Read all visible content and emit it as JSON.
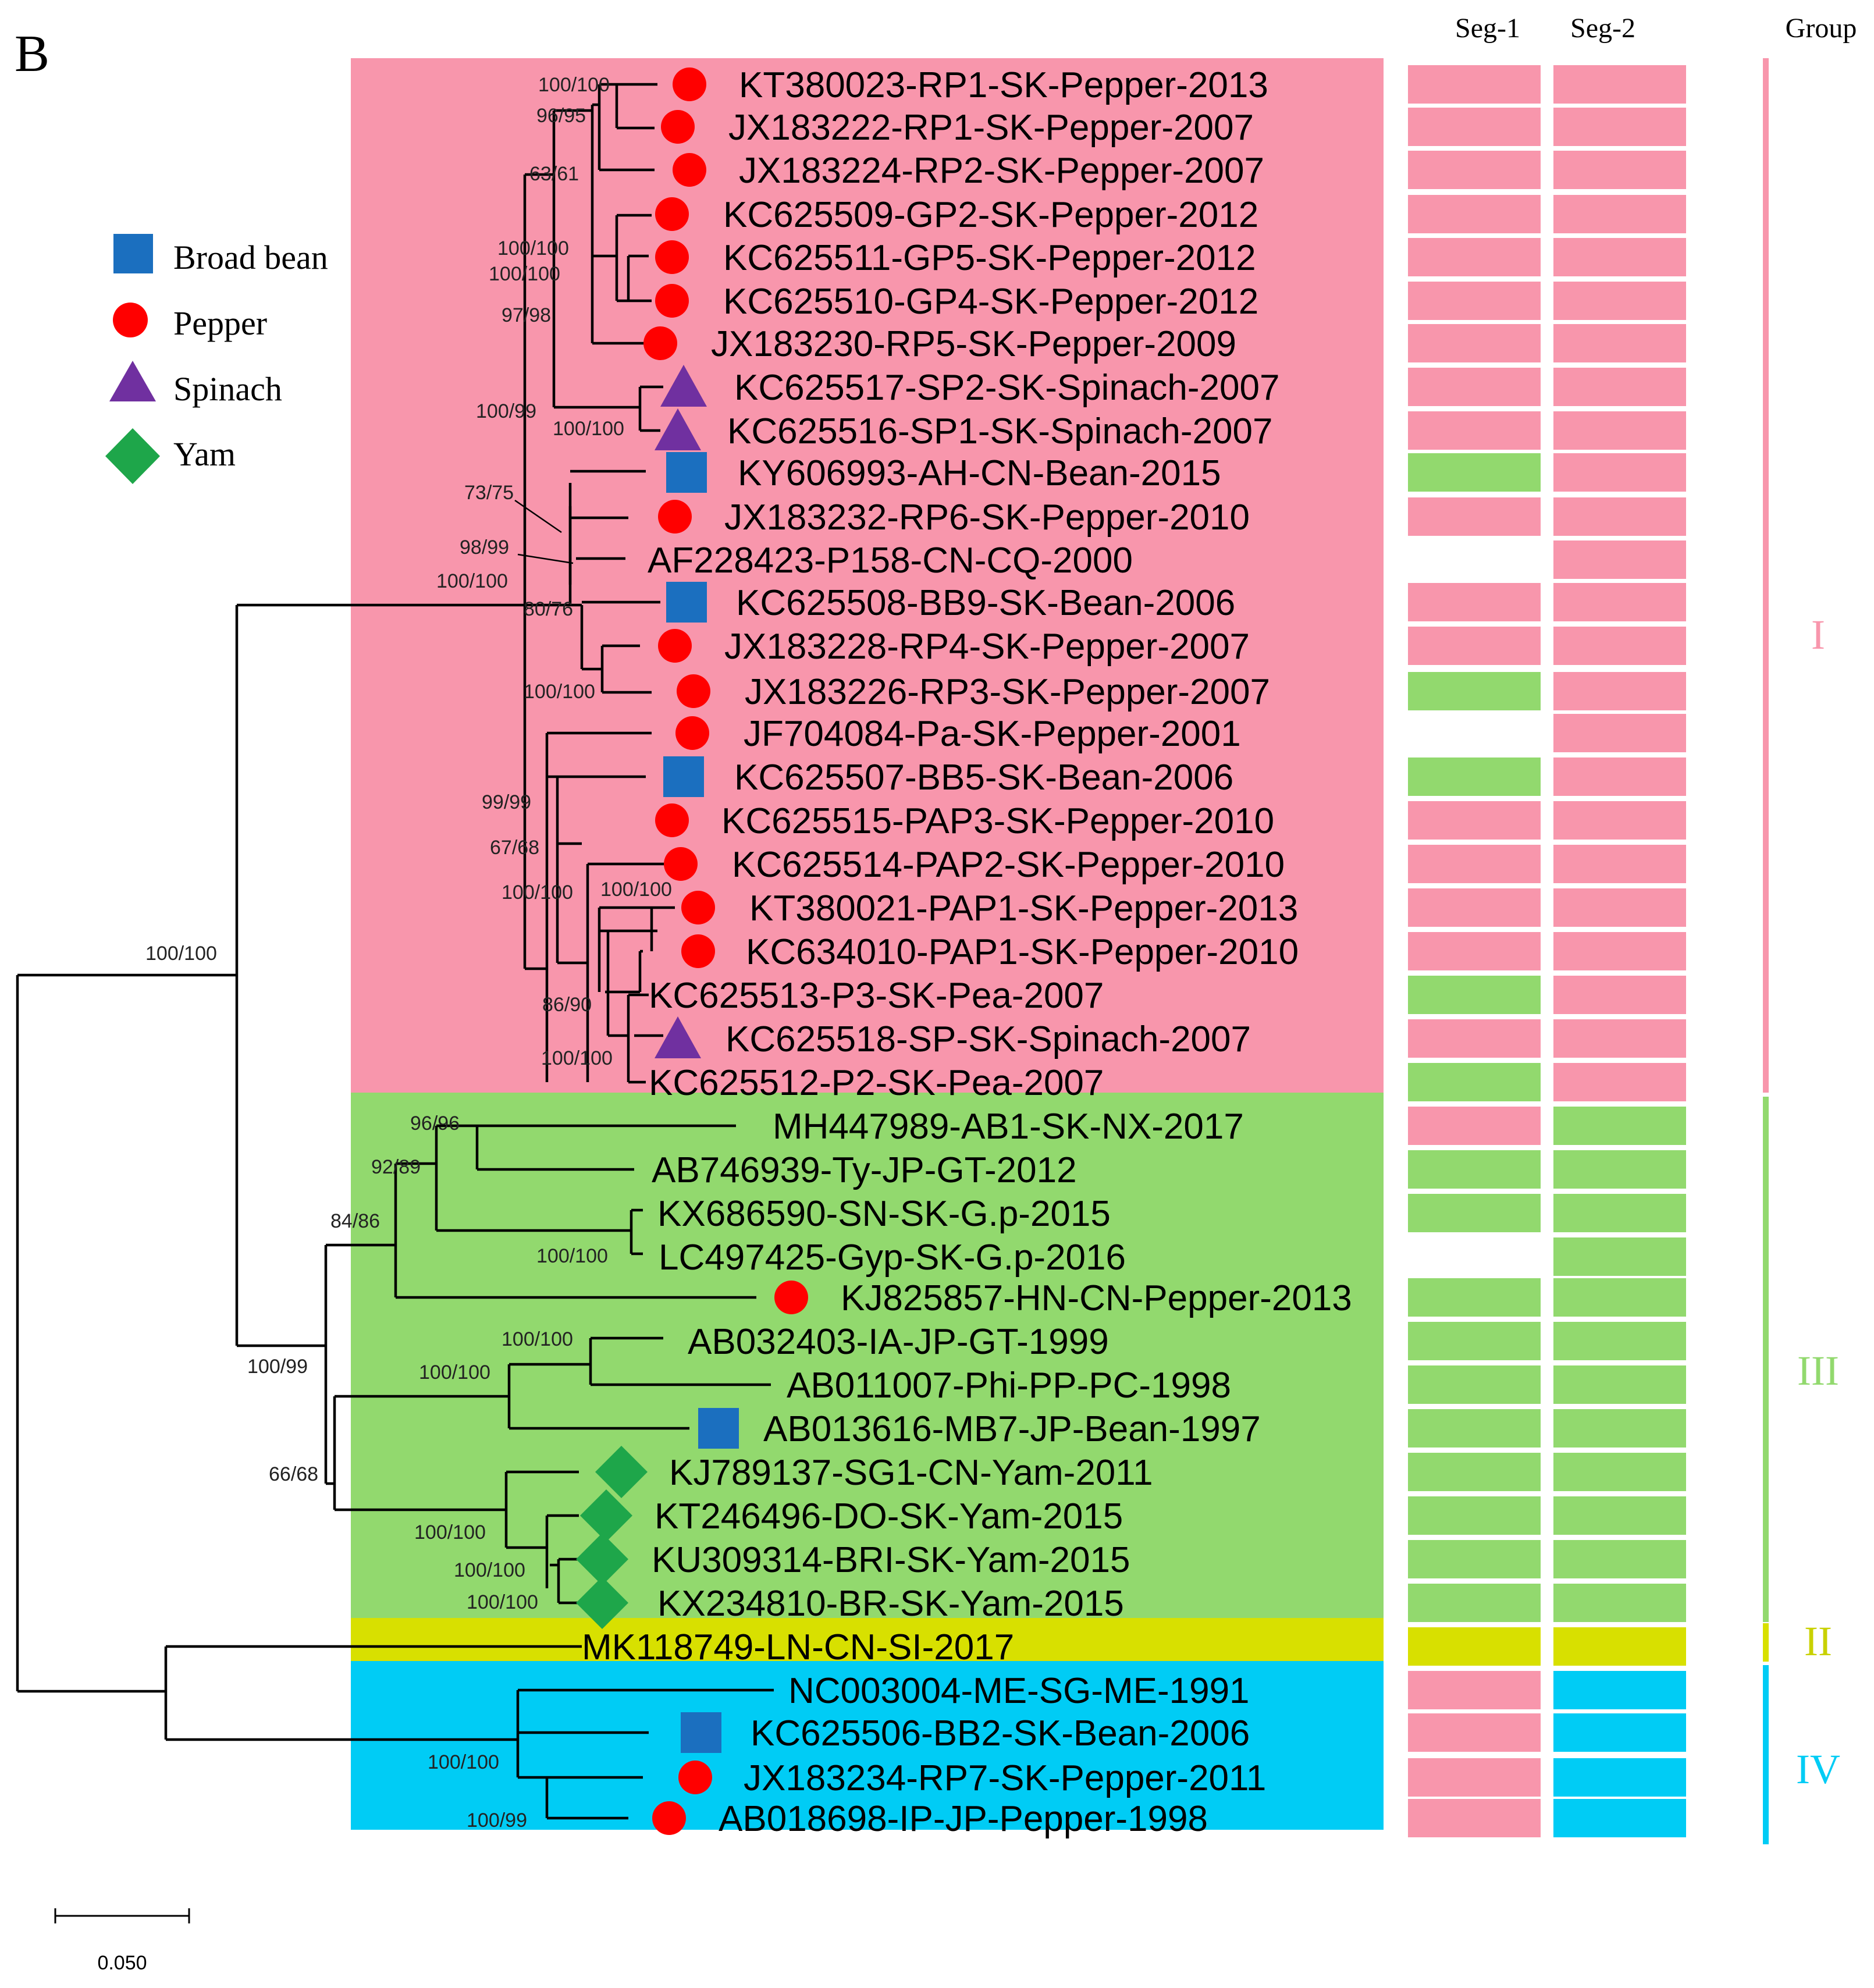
{
  "panel_label": "B",
  "headers": {
    "seg1": "Seg-1",
    "seg2": "Seg-2",
    "group": "Group"
  },
  "legend": [
    {
      "label": "Broad bean",
      "shape": "square-icon",
      "color": "#1b6fbf"
    },
    {
      "label": "Pepper",
      "shape": "circle-icon",
      "color": "#ff0000"
    },
    {
      "label": "Spinach",
      "shape": "triangle-icon",
      "color": "#7030a0"
    },
    {
      "label": "Yam",
      "shape": "diamond-icon",
      "color": "#1ea64a"
    }
  ],
  "colors": {
    "I": "#f896ac",
    "III": "#92d96e",
    "II": "#d8e000",
    "IV": "#00ccf5"
  },
  "groups": [
    {
      "label": "I",
      "color": "#f896ac"
    },
    {
      "label": "III",
      "color": "#92d96e"
    },
    {
      "label": "II",
      "color": "#d8e000"
    },
    {
      "label": "IV",
      "color": "#00ccf5"
    }
  ],
  "scale_bar": "0.050",
  "taxa": [
    {
      "name": "KT380023-RP1-SK-Pepper-2013",
      "host": "Pepper",
      "seg1": "I",
      "seg2": "I"
    },
    {
      "name": "JX183222-RP1-SK-Pepper-2007",
      "host": "Pepper",
      "seg1": "I",
      "seg2": "I"
    },
    {
      "name": "JX183224-RP2-SK-Pepper-2007",
      "host": "Pepper",
      "seg1": "I",
      "seg2": "I"
    },
    {
      "name": "KC625509-GP2-SK-Pepper-2012",
      "host": "Pepper",
      "seg1": "I",
      "seg2": "I"
    },
    {
      "name": "KC625511-GP5-SK-Pepper-2012",
      "host": "Pepper",
      "seg1": "I",
      "seg2": "I"
    },
    {
      "name": "KC625510-GP4-SK-Pepper-2012",
      "host": "Pepper",
      "seg1": "I",
      "seg2": "I"
    },
    {
      "name": "JX183230-RP5-SK-Pepper-2009",
      "host": "Pepper",
      "seg1": "I",
      "seg2": "I"
    },
    {
      "name": "KC625517-SP2-SK-Spinach-2007",
      "host": "Spinach",
      "seg1": "I",
      "seg2": "I"
    },
    {
      "name": "KC625516-SP1-SK-Spinach-2007",
      "host": "Spinach",
      "seg1": "I",
      "seg2": "I"
    },
    {
      "name": "KY606993-AH-CN-Bean-2015",
      "host": "Broad bean",
      "seg1": "III",
      "seg2": "I"
    },
    {
      "name": "JX183232-RP6-SK-Pepper-2010",
      "host": "Pepper",
      "seg1": "I",
      "seg2": "I"
    },
    {
      "name": "AF228423-P158-CN-CQ-2000",
      "host": "",
      "seg1": "",
      "seg2": "I"
    },
    {
      "name": "KC625508-BB9-SK-Bean-2006",
      "host": "Broad bean",
      "seg1": "I",
      "seg2": "I"
    },
    {
      "name": "JX183228-RP4-SK-Pepper-2007",
      "host": "Pepper",
      "seg1": "I",
      "seg2": "I"
    },
    {
      "name": "JX183226-RP3-SK-Pepper-2007",
      "host": "Pepper",
      "seg1": "III",
      "seg2": "I"
    },
    {
      "name": "JF704084-Pa-SK-Pepper-2001",
      "host": "Pepper",
      "seg1": "",
      "seg2": "I"
    },
    {
      "name": "KC625507-BB5-SK-Bean-2006",
      "host": "Broad bean",
      "seg1": "III",
      "seg2": "I"
    },
    {
      "name": "KC625515-PAP3-SK-Pepper-2010",
      "host": "Pepper",
      "seg1": "I",
      "seg2": "I"
    },
    {
      "name": "KC625514-PAP2-SK-Pepper-2010",
      "host": "Pepper",
      "seg1": "I",
      "seg2": "I"
    },
    {
      "name": "KT380021-PAP1-SK-Pepper-2013",
      "host": "Pepper",
      "seg1": "I",
      "seg2": "I"
    },
    {
      "name": "KC634010-PAP1-SK-Pepper-2010",
      "host": "Pepper",
      "seg1": "I",
      "seg2": "I"
    },
    {
      "name": "KC625513-P3-SK-Pea-2007",
      "host": "",
      "seg1": "III",
      "seg2": "I"
    },
    {
      "name": "KC625518-SP-SK-Spinach-2007",
      "host": "Spinach",
      "seg1": "I",
      "seg2": "I"
    },
    {
      "name": "KC625512-P2-SK-Pea-2007",
      "host": "",
      "seg1": "III",
      "seg2": "I"
    },
    {
      "name": "MH447989-AB1-SK-NX-2017",
      "host": "",
      "seg1": "I",
      "seg2": "III"
    },
    {
      "name": "AB746939-Ty-JP-GT-2012",
      "host": "",
      "seg1": "III",
      "seg2": "III"
    },
    {
      "name": "KX686590-SN-SK-G.p-2015",
      "host": "",
      "seg1": "III",
      "seg2": "III"
    },
    {
      "name": "LC497425-Gyp-SK-G.p-2016",
      "host": "",
      "seg1": "",
      "seg2": "III"
    },
    {
      "name": "KJ825857-HN-CN-Pepper-2013",
      "host": "Pepper",
      "seg1": "III",
      "seg2": "III"
    },
    {
      "name": "AB032403-IA-JP-GT-1999",
      "host": "",
      "seg1": "III",
      "seg2": "III"
    },
    {
      "name": "AB011007-Phi-PP-PC-1998",
      "host": "",
      "seg1": "III",
      "seg2": "III"
    },
    {
      "name": "AB013616-MB7-JP-Bean-1997",
      "host": "Broad bean",
      "seg1": "III",
      "seg2": "III"
    },
    {
      "name": "KJ789137-SG1-CN-Yam-2011",
      "host": "Yam",
      "seg1": "III",
      "seg2": "III"
    },
    {
      "name": "KT246496-DO-SK-Yam-2015",
      "host": "Yam",
      "seg1": "III",
      "seg2": "III"
    },
    {
      "name": "KU309314-BRI-SK-Yam-2015",
      "host": "Yam",
      "seg1": "III",
      "seg2": "III"
    },
    {
      "name": "KX234810-BR-SK-Yam-2015",
      "host": "Yam",
      "seg1": "III",
      "seg2": "III"
    },
    {
      "name": "MK118749-LN-CN-SI-2017",
      "host": "",
      "seg1": "II",
      "seg2": "II"
    },
    {
      "name": "NC003004-ME-SG-ME-1991",
      "host": "",
      "seg1": "I",
      "seg2": "IV"
    },
    {
      "name": "KC625506-BB2-SK-Bean-2006",
      "host": "Broad bean",
      "seg1": "I",
      "seg2": "IV"
    },
    {
      "name": "JX183234-RP7-SK-Pepper-2011",
      "host": "Pepper",
      "seg1": "I",
      "seg2": "IV"
    },
    {
      "name": "AB018698-IP-JP-Pepper-1998",
      "host": "Pepper",
      "seg1": "I",
      "seg2": "IV"
    }
  ],
  "bootstrap": [
    "100/100",
    "96/95",
    "63/61",
    "100/100",
    "100/100",
    "97/98",
    "100/99",
    "100/100",
    "73/75",
    "98/99",
    "100/100",
    "80/76",
    "100/100",
    "99/99",
    "67/68",
    "100/100",
    "100/100",
    "86/90",
    "100/100",
    "100/100",
    "96/96",
    "92/89",
    "84/86",
    "100/100",
    "100/100",
    "100/100",
    "100/99",
    "66/68",
    "100/100",
    "100/100",
    "100/100",
    "100/100",
    "100/99"
  ]
}
